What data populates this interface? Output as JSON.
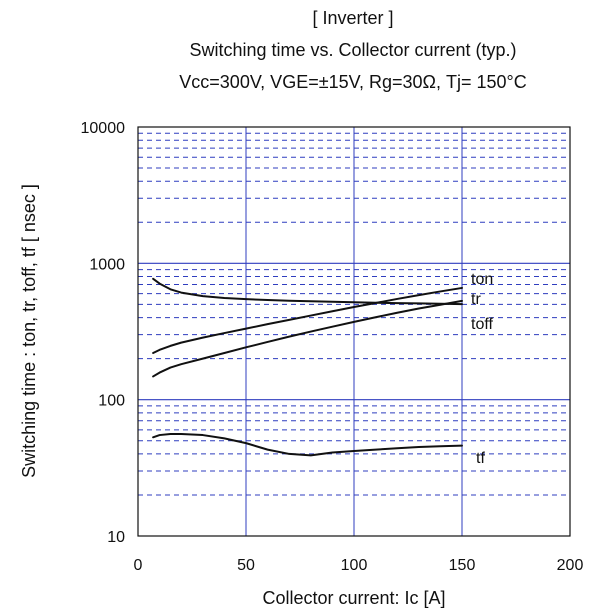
{
  "chart_data": {
    "type": "line",
    "title": "[ Inverter ]",
    "subtitle": "Switching time  vs.  Collector current  (typ.)",
    "conditions": "Vcc=300V,  VGE=±15V,  Rg=30Ω,  Tj= 150°C",
    "xlabel": "Collector current: Ic [A]",
    "ylabel": "Switching time  :  ton, tr, toff, tf  [ nsec ]",
    "xlim": [
      0,
      200
    ],
    "ylim": [
      10,
      10000
    ],
    "y_scale": "log",
    "grid": true,
    "x_ticks": [
      0,
      50,
      100,
      150,
      200
    ],
    "x_tick_labels": [
      "0",
      "50",
      "100",
      "150",
      "200"
    ],
    "y_ticks": [
      10,
      100,
      1000,
      10000
    ],
    "y_tick_labels": [
      "10",
      "100",
      "1000",
      "10000"
    ],
    "series": [
      {
        "name": "ton",
        "x": [
          7,
          10,
          15,
          20,
          30,
          40,
          50,
          60,
          70,
          80,
          90,
          100,
          110,
          120,
          130,
          140,
          150
        ],
        "values": [
          220,
          232,
          248,
          262,
          285,
          308,
          332,
          358,
          385,
          414,
          445,
          478,
          512,
          548,
          585,
          622,
          660
        ]
      },
      {
        "name": "tr",
        "x": [
          7,
          10,
          15,
          20,
          30,
          40,
          50,
          60,
          70,
          80,
          90,
          100,
          110,
          120,
          130,
          140,
          150
        ],
        "values": [
          148,
          158,
          172,
          182,
          200,
          220,
          242,
          265,
          290,
          316,
          343,
          372,
          402,
          434,
          466,
          497,
          530
        ]
      },
      {
        "name": "toff",
        "x": [
          7,
          10,
          15,
          20,
          30,
          40,
          50,
          60,
          70,
          80,
          90,
          100,
          110,
          120,
          130,
          140,
          150
        ],
        "values": [
          770,
          710,
          645,
          610,
          575,
          557,
          546,
          538,
          532,
          527,
          523,
          518,
          514,
          511,
          508,
          505,
          502
        ]
      },
      {
        "name": "tf",
        "x": [
          7,
          10,
          15,
          20,
          30,
          40,
          50,
          60,
          70,
          80,
          90,
          100,
          110,
          120,
          130,
          140,
          150
        ],
        "values": [
          53,
          55,
          56,
          56,
          55,
          52,
          48,
          43,
          40,
          39,
          41,
          42,
          43,
          44,
          45,
          45.5,
          46
        ]
      }
    ],
    "colors": {
      "grid_major": "#2f3dbf",
      "grid_minor": "#2f3dbf",
      "axis": "#111111",
      "series": "#111111"
    }
  }
}
